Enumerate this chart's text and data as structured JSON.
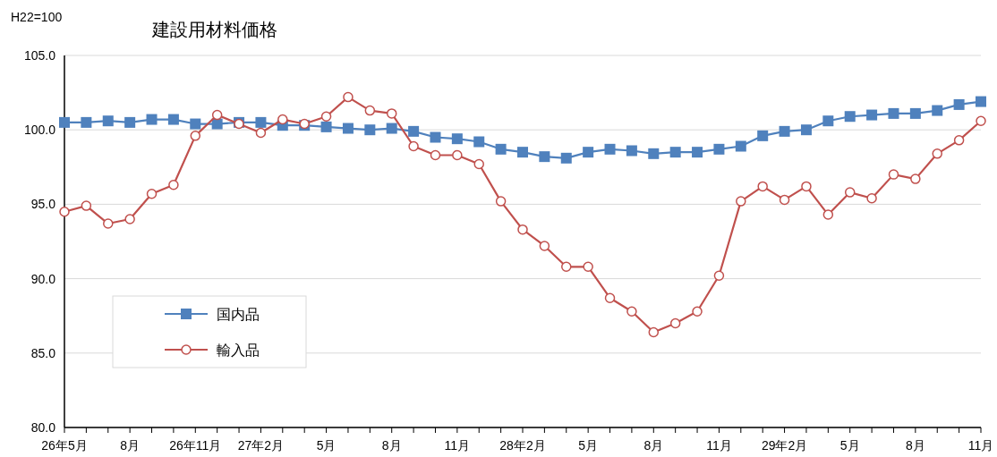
{
  "chart_data": {
    "type": "line",
    "title": "建設用材料価格",
    "ylabel": "H22=100",
    "categories": [
      "26年5月",
      null,
      null,
      "8月",
      null,
      null,
      "26年11月",
      null,
      null,
      "27年2月",
      null,
      null,
      "5月",
      null,
      null,
      "8月",
      null,
      null,
      "11月",
      null,
      null,
      "28年2月",
      null,
      null,
      "5月",
      null,
      null,
      "8月",
      null,
      null,
      "11月",
      null,
      null,
      "29年2月",
      null,
      null,
      "5月",
      null,
      null,
      "8月",
      null,
      null,
      "11月"
    ],
    "series": [
      {
        "name": "国内品",
        "color": "#4f81bd",
        "marker": "square",
        "values": [
          100.5,
          100.5,
          100.6,
          100.5,
          100.7,
          100.7,
          100.4,
          100.4,
          100.5,
          100.5,
          100.3,
          100.3,
          100.2,
          100.1,
          100.0,
          100.1,
          99.9,
          99.5,
          99.4,
          99.2,
          98.7,
          98.5,
          98.2,
          98.1,
          98.5,
          98.7,
          98.6,
          98.4,
          98.5,
          98.5,
          98.7,
          98.9,
          99.6,
          99.9,
          100.0,
          100.6,
          100.9,
          101.0,
          101.1,
          101.1,
          101.3,
          101.7,
          101.9
        ]
      },
      {
        "name": "輸入品",
        "color": "#c0504d",
        "marker": "circle",
        "values": [
          94.5,
          94.9,
          93.7,
          94.0,
          95.7,
          96.3,
          99.6,
          101.0,
          100.4,
          99.8,
          100.7,
          100.4,
          100.9,
          102.2,
          101.3,
          101.1,
          98.9,
          98.3,
          98.3,
          97.7,
          95.2,
          93.3,
          92.2,
          90.8,
          90.8,
          88.7,
          87.8,
          86.4,
          87.0,
          87.8,
          90.2,
          95.2,
          96.2,
          95.3,
          96.2,
          94.3,
          95.8,
          95.4,
          97.0,
          96.7,
          98.4,
          99.3,
          100.6
        ]
      }
    ],
    "ylim": [
      80,
      105
    ],
    "yticks": [
      {
        "value": 80,
        "label": "80.0"
      },
      {
        "value": 85,
        "label": "85.0"
      },
      {
        "value": 90,
        "label": "90.0"
      },
      {
        "value": 95,
        "label": "95.0"
      },
      {
        "value": 100,
        "label": "100.0"
      },
      {
        "value": 105,
        "label": "105.0"
      }
    ],
    "grid": "y",
    "legend": "bottom left",
    "line_style": "solid"
  }
}
